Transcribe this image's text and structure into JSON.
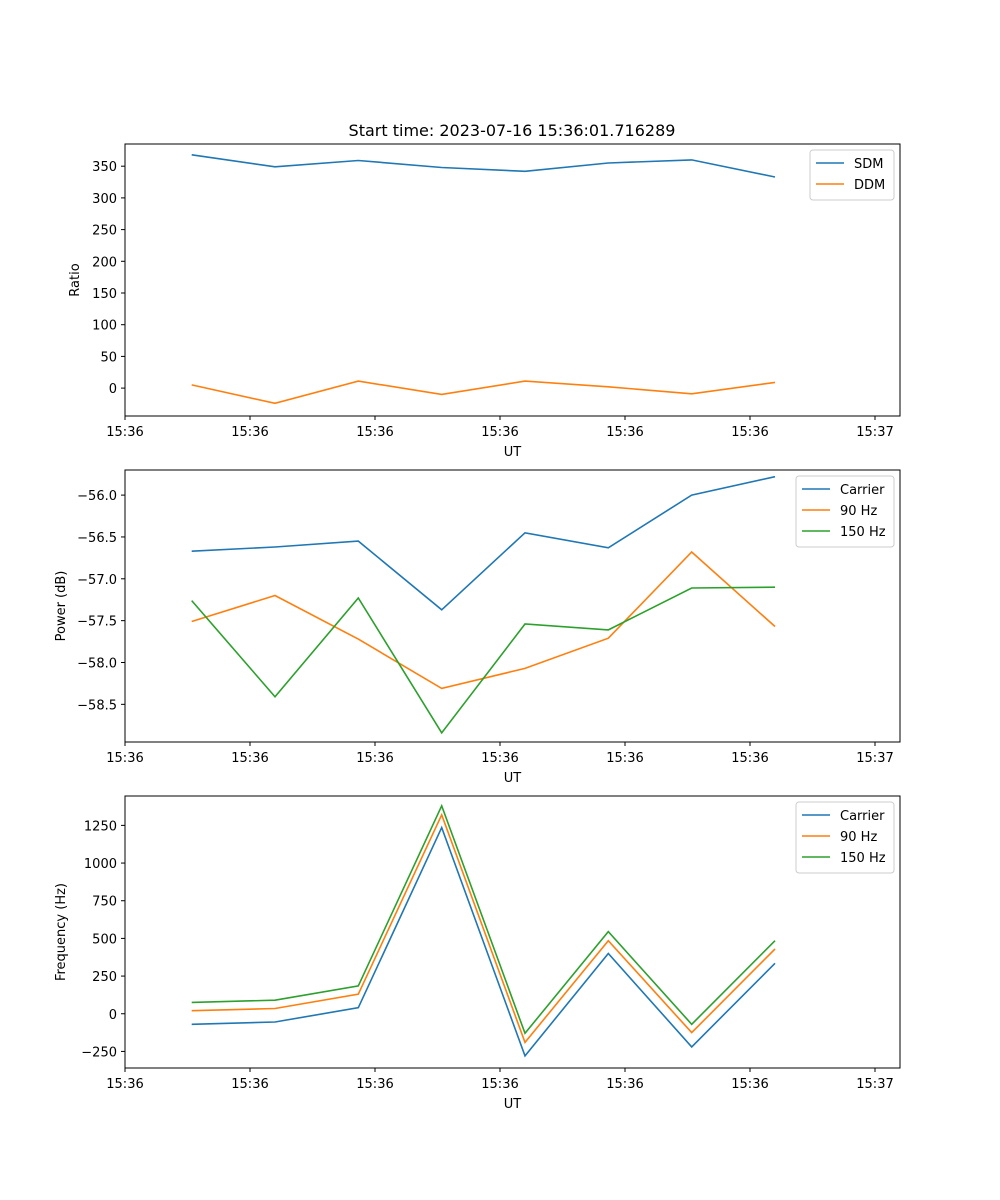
{
  "figure_title": "Start time: 2023-07-16 15:36:01.716289",
  "chart_data": [
    {
      "type": "line",
      "title": "Start time: 2023-07-16 15:36:01.716289",
      "xlabel": "UT",
      "ylabel": "Ratio",
      "x": [
        1,
        2,
        3,
        4,
        5,
        6,
        7,
        8
      ],
      "xlim": [
        0.2,
        9.5
      ],
      "xticks": [
        0.2,
        1.7,
        3.2,
        4.7,
        6.2,
        7.7,
        9.2
      ],
      "xtick_labels": [
        "15:36",
        "15:36",
        "15:36",
        "15:36",
        "15:36",
        "15:36",
        "15:37"
      ],
      "ylim": [
        -44,
        385
      ],
      "yticks": [
        0,
        50,
        100,
        150,
        200,
        250,
        300,
        350
      ],
      "ytick_labels": [
        "0",
        "50",
        "100",
        "150",
        "200",
        "250",
        "300",
        "350"
      ],
      "legend_position": "top-right",
      "series": [
        {
          "name": "SDM",
          "color": "#1f77b4",
          "values": [
            368,
            349,
            359,
            348,
            342,
            355,
            360,
            333
          ]
        },
        {
          "name": "DDM",
          "color": "#ff7f0e",
          "values": [
            5,
            -24,
            11,
            -10,
            11,
            2,
            -9,
            9
          ]
        }
      ]
    },
    {
      "type": "line",
      "title": "",
      "xlabel": "UT",
      "ylabel": "Power (dB)",
      "x": [
        1,
        2,
        3,
        4,
        5,
        6,
        7,
        8
      ],
      "xlim": [
        0.2,
        9.5
      ],
      "xticks": [
        0.2,
        1.7,
        3.2,
        4.7,
        6.2,
        7.7,
        9.2
      ],
      "xtick_labels": [
        "15:36",
        "15:36",
        "15:36",
        "15:36",
        "15:36",
        "15:36",
        "15:37"
      ],
      "ylim": [
        -58.95,
        -55.7
      ],
      "yticks": [
        -58.5,
        -58.0,
        -57.5,
        -57.0,
        -56.5,
        -56.0
      ],
      "ytick_labels": [
        "−58.5",
        "−58.0",
        "−57.5",
        "−57.0",
        "−56.5",
        "−56.0"
      ],
      "legend_position": "top-right",
      "series": [
        {
          "name": "Carrier",
          "color": "#1f77b4",
          "values": [
            -56.67,
            -56.62,
            -56.55,
            -57.37,
            -56.45,
            -56.63,
            -56.0,
            -55.78
          ]
        },
        {
          "name": "90 Hz",
          "color": "#ff7f0e",
          "values": [
            -57.51,
            -57.2,
            -57.72,
            -58.31,
            -58.07,
            -57.71,
            -56.68,
            -57.57
          ]
        },
        {
          "name": "150 Hz",
          "color": "#2ca02c",
          "values": [
            -57.26,
            -58.41,
            -57.23,
            -58.84,
            -57.54,
            -57.61,
            -57.11,
            -57.1
          ]
        }
      ]
    },
    {
      "type": "line",
      "title": "",
      "xlabel": "UT",
      "ylabel": "Frequency (Hz)",
      "x": [
        1,
        2,
        3,
        4,
        5,
        6,
        7,
        8
      ],
      "xlim": [
        0.2,
        9.5
      ],
      "xticks": [
        0.2,
        1.7,
        3.2,
        4.7,
        6.2,
        7.7,
        9.2
      ],
      "xtick_labels": [
        "15:36",
        "15:36",
        "15:36",
        "15:36",
        "15:36",
        "15:36",
        "15:37"
      ],
      "ylim": [
        -360,
        1445
      ],
      "yticks": [
        -250,
        0,
        250,
        500,
        750,
        1000,
        1250
      ],
      "ytick_labels": [
        "−250",
        "0",
        "250",
        "500",
        "750",
        "1000",
        "1250"
      ],
      "legend_position": "top-right",
      "series": [
        {
          "name": "Carrier",
          "color": "#1f77b4",
          "values": [
            -70,
            -55,
            40,
            1235,
            -280,
            400,
            -220,
            335
          ]
        },
        {
          "name": "90 Hz",
          "color": "#ff7f0e",
          "values": [
            20,
            35,
            130,
            1320,
            -190,
            485,
            -125,
            430
          ]
        },
        {
          "name": "150 Hz",
          "color": "#2ca02c",
          "values": [
            75,
            90,
            185,
            1380,
            -130,
            545,
            -70,
            485
          ]
        }
      ]
    }
  ]
}
